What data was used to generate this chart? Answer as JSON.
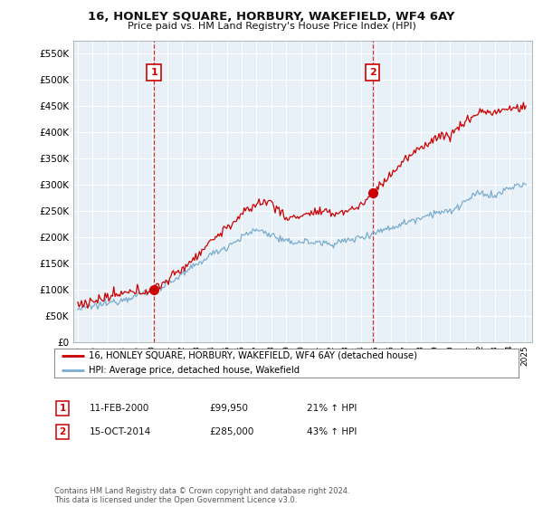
{
  "title": "16, HONLEY SQUARE, HORBURY, WAKEFIELD, WF4 6AY",
  "subtitle": "Price paid vs. HM Land Registry's House Price Index (HPI)",
  "legend_line1": "16, HONLEY SQUARE, HORBURY, WAKEFIELD, WF4 6AY (detached house)",
  "legend_line2": "HPI: Average price, detached house, Wakefield",
  "sale1_label": "1",
  "sale1_date": "11-FEB-2000",
  "sale1_price": "£99,950",
  "sale1_hpi": "21% ↑ HPI",
  "sale1_year": 2000.12,
  "sale1_value": 99950,
  "sale2_label": "2",
  "sale2_date": "15-OCT-2014",
  "sale2_price": "£285,000",
  "sale2_hpi": "43% ↑ HPI",
  "sale2_year": 2014.79,
  "sale2_value": 285000,
  "copyright": "Contains HM Land Registry data © Crown copyright and database right 2024.\nThis data is licensed under the Open Government Licence v3.0.",
  "red_color": "#cc0000",
  "blue_color": "#7aacce",
  "fill_color": "#ddeeff",
  "dashed_color": "#cc0000",
  "background_color": "#ffffff",
  "plot_bg_color": "#e8f0f8",
  "grid_color": "#ffffff",
  "ylim_min": 0,
  "ylim_max": 575000,
  "xlim_min": 1994.7,
  "xlim_max": 2025.5,
  "hpi_knots_x": [
    1995,
    1996,
    1997,
    1998,
    1999,
    2000,
    2001,
    2002,
    2003,
    2004,
    2005,
    2006,
    2007,
    2008,
    2009,
    2010,
    2011,
    2012,
    2013,
    2014,
    2015,
    2016,
    2017,
    2018,
    2019,
    2020,
    2021,
    2022,
    2023,
    2024,
    2025
  ],
  "hpi_knots_y": [
    63000,
    68000,
    74000,
    82000,
    90000,
    98000,
    112000,
    128000,
    148000,
    168000,
    182000,
    200000,
    215000,
    205000,
    190000,
    192000,
    190000,
    188000,
    193000,
    200000,
    210000,
    218000,
    228000,
    238000,
    248000,
    248000,
    268000,
    285000,
    278000,
    295000,
    300000
  ],
  "red_knots_x": [
    1995,
    1996,
    1997,
    1998,
    1999,
    2000,
    2001,
    2002,
    2003,
    2004,
    2005,
    2006,
    2007,
    2008,
    2009,
    2010,
    2011,
    2012,
    2013,
    2014,
    2015,
    2016,
    2017,
    2018,
    2019,
    2020,
    2021,
    2022,
    2023,
    2024,
    2025
  ],
  "red_knots_y": [
    72000,
    78000,
    85000,
    92000,
    96000,
    99950,
    118000,
    140000,
    165000,
    195000,
    218000,
    242000,
    265000,
    268000,
    235000,
    242000,
    248000,
    245000,
    250000,
    260000,
    290000,
    320000,
    348000,
    370000,
    390000,
    395000,
    420000,
    440000,
    438000,
    445000,
    448000
  ],
  "noise_seed": 12345
}
